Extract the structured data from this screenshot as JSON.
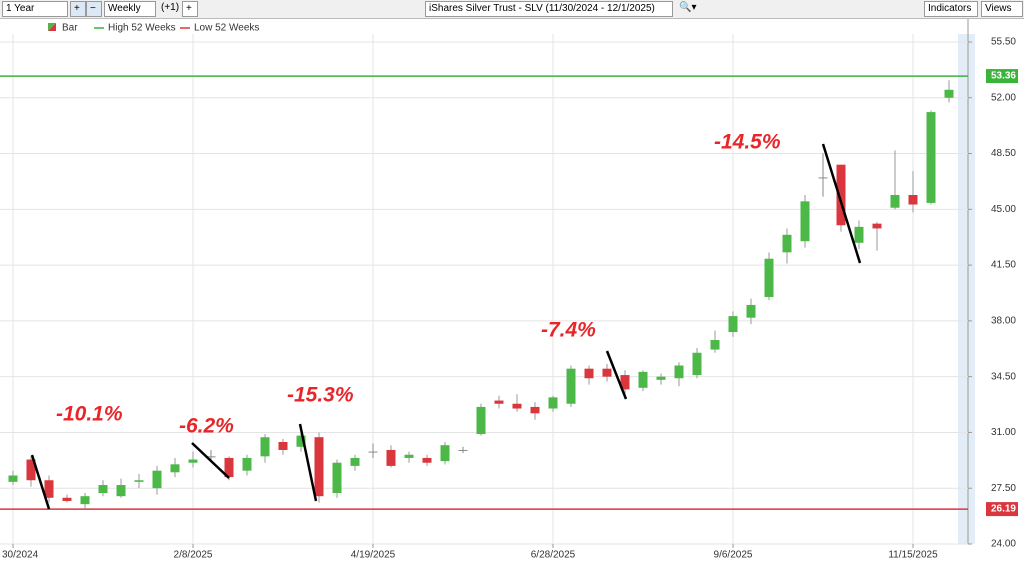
{
  "toolbar": {
    "range": "1 Year",
    "interval": "Weekly",
    "offset": "(+1)",
    "title": "iShares Silver Trust - SLV (11/30/2024 - 12/1/2025)",
    "indicators": "Indicators",
    "views": "Views"
  },
  "chart_data": {
    "type": "candlestick",
    "grid": true,
    "categories": [
      "30/2024",
      null,
      null,
      null,
      null,
      null,
      null,
      null,
      null,
      null,
      "2/8/2025",
      null,
      null,
      null,
      null,
      null,
      null,
      null,
      null,
      null,
      "4/19/2025",
      null,
      null,
      null,
      null,
      null,
      null,
      null,
      null,
      null,
      "6/28/2025",
      null,
      null,
      null,
      null,
      null,
      null,
      null,
      null,
      null,
      "9/6/2025",
      null,
      null,
      null,
      null,
      null,
      null,
      null,
      null,
      null,
      "11/15/2025",
      null,
      null
    ],
    "ylim": [
      24,
      56
    ],
    "yticks": [
      {
        "value": 24,
        "label": "24.00"
      },
      {
        "value": 27.5,
        "label": "27.50"
      },
      {
        "value": 31,
        "label": "31.00"
      },
      {
        "value": 34.5,
        "label": "34.50"
      },
      {
        "value": 38,
        "label": "38.00"
      },
      {
        "value": 41.5,
        "label": "41.50"
      },
      {
        "value": 45,
        "label": "45.00"
      },
      {
        "value": 48.5,
        "label": "48.50"
      },
      {
        "value": 52,
        "label": "52.00"
      },
      {
        "value": 55.5,
        "label": "55.50"
      }
    ],
    "series": [
      {
        "name": "Bar",
        "up_color": "#4cb848",
        "down_color": "#d9363e",
        "flat_color": "#8a8a8a",
        "open": [
          27.9,
          29.3,
          28.0,
          26.9,
          26.5,
          27.2,
          27.0,
          27.9,
          27.5,
          28.5,
          29.1,
          29.5,
          29.4,
          28.6,
          29.5,
          30.4,
          30.1,
          30.7,
          27.2,
          28.9,
          29.8,
          29.9,
          29.4,
          29.4,
          29.2,
          29.9,
          30.9,
          33.0,
          32.8,
          32.6,
          32.5,
          32.8,
          35.0,
          35.0,
          34.6,
          33.8,
          34.3,
          34.4,
          34.6,
          36.2,
          37.3,
          38.2,
          39.5,
          42.3,
          43.0,
          47.0,
          47.8,
          42.9,
          44.1,
          45.1,
          45.9,
          45.4,
          52.0
        ],
        "high": [
          28.6,
          29.5,
          28.3,
          27.1,
          27.2,
          28.0,
          28.1,
          28.4,
          28.9,
          29.4,
          29.8,
          29.9,
          29.5,
          29.6,
          30.9,
          30.6,
          31.0,
          31.0,
          29.3,
          29.6,
          30.3,
          30.2,
          29.8,
          29.6,
          30.4,
          30.1,
          32.8,
          33.3,
          33.4,
          32.9,
          33.3,
          35.2,
          35.2,
          35.3,
          34.9,
          34.9,
          34.7,
          35.4,
          36.3,
          37.4,
          38.6,
          39.4,
          42.3,
          43.8,
          45.9,
          48.5,
          47.8,
          44.3,
          44.2,
          48.7,
          47.4,
          51.2,
          53.1
        ],
        "low": [
          27.7,
          27.6,
          26.6,
          26.6,
          26.2,
          27.0,
          26.9,
          27.5,
          27.1,
          28.2,
          28.8,
          29.2,
          28.0,
          28.3,
          29.1,
          29.6,
          29.8,
          26.6,
          26.9,
          28.6,
          29.4,
          28.8,
          29.1,
          28.9,
          29.0,
          29.7,
          30.8,
          32.5,
          32.3,
          31.8,
          32.3,
          32.6,
          34.0,
          34.2,
          33.3,
          33.6,
          34.0,
          33.9,
          34.4,
          36.0,
          37.0,
          37.8,
          39.3,
          41.6,
          42.6,
          45.8,
          43.6,
          42.5,
          42.4,
          45.0,
          44.8,
          45.3,
          51.7
        ],
        "close": [
          28.3,
          28.0,
          26.9,
          26.7,
          27.0,
          27.7,
          27.7,
          28.0,
          28.6,
          29.0,
          29.3,
          29.5,
          28.2,
          29.4,
          30.7,
          29.9,
          30.8,
          27.0,
          29.1,
          29.4,
          29.8,
          28.9,
          29.6,
          29.1,
          30.2,
          29.9,
          32.6,
          32.8,
          32.5,
          32.2,
          33.2,
          35.0,
          34.4,
          34.5,
          33.7,
          34.8,
          34.5,
          35.2,
          36.0,
          36.8,
          38.3,
          39.0,
          41.9,
          43.4,
          45.5,
          47.0,
          44.0,
          43.9,
          43.8,
          45.9,
          45.3,
          51.1,
          52.5
        ]
      }
    ],
    "reference_lines": [
      {
        "name": "High 52 Weeks",
        "value": 53.36,
        "color": "#3bb33b"
      },
      {
        "name": "Low 52 Weeks",
        "value": 26.19,
        "color": "#d9363e"
      }
    ],
    "annotations": [
      "-10.1%",
      "-6.2%",
      "-15.3%",
      "-7.4%",
      "-14.5%"
    ]
  }
}
